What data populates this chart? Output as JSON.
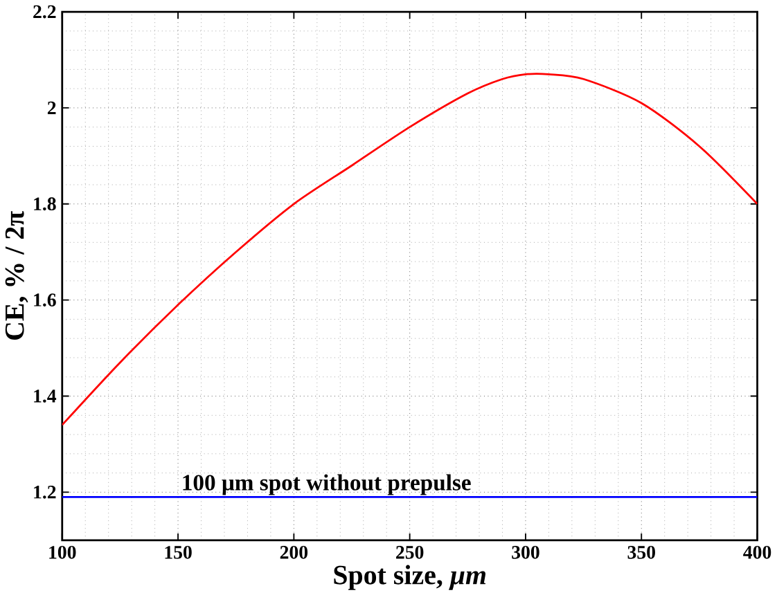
{
  "chart_data": {
    "type": "line",
    "xlabel": "Spot size, *μm*",
    "ylabel": "CE, % / 2π",
    "x": [
      100,
      125,
      150,
      175,
      200,
      225,
      250,
      275,
      290,
      300,
      310,
      325,
      350,
      375,
      400
    ],
    "series": [
      {
        "color": "#ff0000",
        "values": [
          1.34,
          1.47,
          1.59,
          1.7,
          1.8,
          1.88,
          1.96,
          2.03,
          2.06,
          2.07,
          2.07,
          2.06,
          2.01,
          1.92,
          1.8
        ]
      }
    ],
    "xlim": [
      100,
      400
    ],
    "ylim": [
      1.1,
      2.2
    ],
    "xticks": [
      100,
      150,
      200,
      250,
      300,
      350,
      400
    ],
    "yticks": [
      1.2,
      1.4,
      1.6,
      1.8,
      2,
      2.2
    ],
    "grid": true,
    "marker": "none",
    "line_style": "solid",
    "ref_lines": [
      {
        "axis": "y",
        "value": 1.19,
        "label": "100 μm spot without prepulse",
        "color": "#0000ff"
      }
    ]
  }
}
